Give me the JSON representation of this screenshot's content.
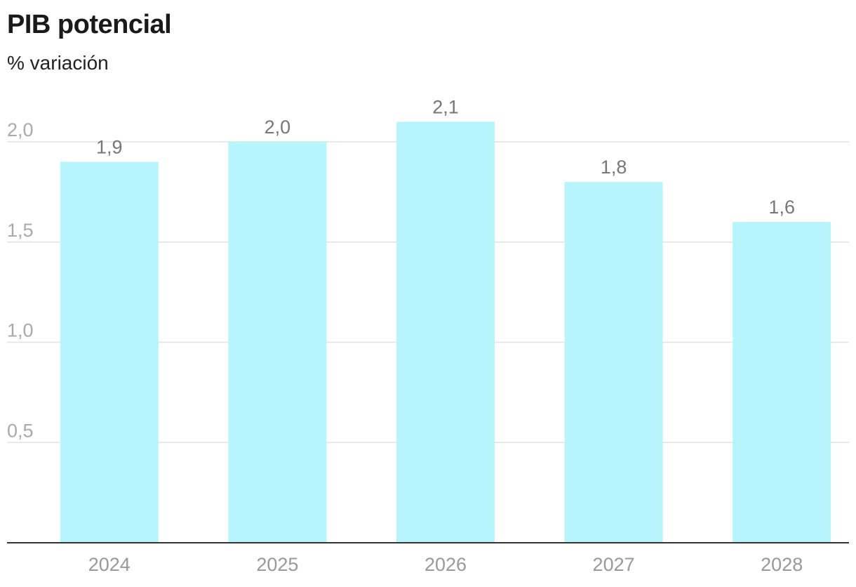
{
  "chart_data": {
    "type": "bar",
    "title": "PIB potencial",
    "subtitle": "% variación",
    "categories": [
      "2024",
      "2025",
      "2026",
      "2027",
      "2028"
    ],
    "values": [
      1.9,
      2.0,
      2.1,
      1.8,
      1.6
    ],
    "value_labels": [
      "1,9",
      "2,0",
      "2,1",
      "1,8",
      "1,6"
    ],
    "yticks": [
      0.5,
      1.0,
      1.5,
      2.0
    ],
    "ytick_labels": [
      "0,5",
      "1,0",
      "1,5",
      "2,0"
    ],
    "ylim": [
      0,
      2.1
    ],
    "grid": true,
    "bar_color": "#b8f4fc",
    "grid_color": "#e2e2e2",
    "axis_color": "#333333"
  }
}
